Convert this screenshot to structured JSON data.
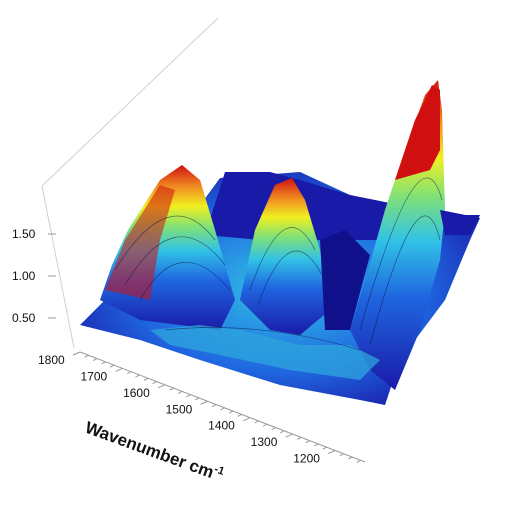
{
  "chart_data": {
    "type": "surface-3d",
    "z_ticks": [
      "1.50",
      "1.00",
      "0.50"
    ],
    "z_tick_values": [
      1.5,
      1.0,
      0.5
    ],
    "x_ticks": [
      "1800",
      "1700",
      "1600",
      "1500",
      "1400",
      "1300",
      "1200"
    ],
    "x_tick_values": [
      1800,
      1700,
      1600,
      1500,
      1400,
      1300,
      1200
    ],
    "xlabel": "Wavenumber cm",
    "xlabel_sup": "-1",
    "xlim": [
      1800,
      1150
    ],
    "zlim": [
      0.3,
      1.9
    ],
    "colormap": [
      "#1a1aa8",
      "#1f66e0",
      "#31c2e6",
      "#7de07a",
      "#f0f020",
      "#f08a20",
      "#d01010"
    ],
    "peaks": [
      {
        "wavenumber": 1690,
        "height": 1.85
      },
      {
        "wavenumber": 1560,
        "height": 1.6
      },
      {
        "wavenumber": 1250,
        "height": 1.85
      }
    ]
  }
}
